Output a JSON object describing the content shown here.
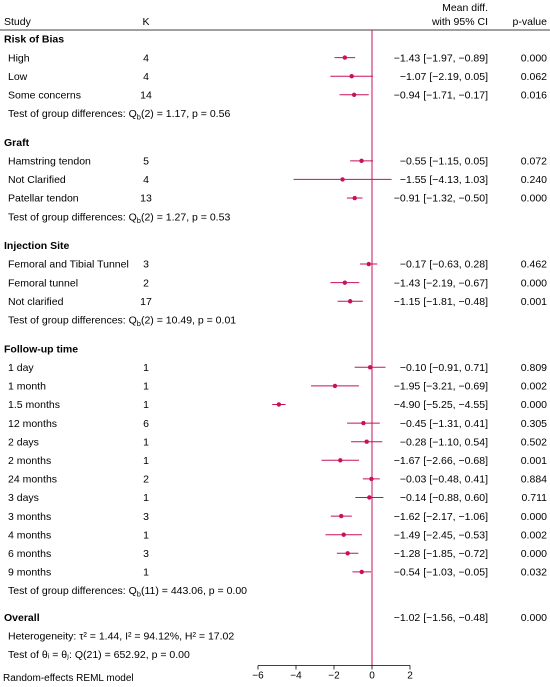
{
  "chart_data": {
    "type": "forest",
    "columns": {
      "study": "Study",
      "k": "K",
      "effect": [
        "Mean diff.",
        "with 95% CI"
      ],
      "p": "p-value"
    },
    "accent_color": "#c8105b",
    "xlim": [
      -6,
      2
    ],
    "xticks": [
      -6,
      -4,
      -2,
      0,
      2
    ],
    "xtick_labels": [
      "−6",
      "−4",
      "−2",
      "0",
      "2"
    ],
    "reference_line": 0,
    "groups": [
      {
        "title": "Risk of Bias",
        "test_prefix": "Test of group differences: Q",
        "test_sub": "b",
        "test_suffix": "(2) = 1.17, p = 0.56",
        "rows": [
          {
            "label": "High",
            "k": "4",
            "est": -1.43,
            "lo": -1.97,
            "hi": -0.89,
            "ci_text": "−1.43 [−1.97, −0.89]",
            "p": "0.000"
          },
          {
            "label": "Low",
            "k": "4",
            "est": -1.07,
            "lo": -2.19,
            "hi": 0.05,
            "ci_text": "−1.07 [−2.19,  0.05]",
            "p": "0.062"
          },
          {
            "label": "Some concerns",
            "k": "14",
            "est": -0.94,
            "lo": -1.71,
            "hi": -0.17,
            "ci_text": "−0.94 [−1.71, −0.17]",
            "p": "0.016"
          }
        ]
      },
      {
        "title": "Graft",
        "test_prefix": "Test of group differences: Q",
        "test_sub": "b",
        "test_suffix": "(2) = 1.27, p = 0.53",
        "rows": [
          {
            "label": "Hamstring tendon",
            "k": "5",
            "est": -0.55,
            "lo": -1.15,
            "hi": 0.05,
            "ci_text": "−0.55 [−1.15,  0.05]",
            "p": "0.072"
          },
          {
            "label": "Not Clarified",
            "k": "4",
            "est": -1.55,
            "lo": -4.13,
            "hi": 1.03,
            "ci_text": "−1.55 [−4.13,  1.03]",
            "p": "0.240"
          },
          {
            "label": "Patellar tendon",
            "k": "13",
            "est": -0.91,
            "lo": -1.32,
            "hi": -0.5,
            "ci_text": "−0.91 [−1.32, −0.50]",
            "p": "0.000"
          }
        ]
      },
      {
        "title": "Injection Site",
        "test_prefix": "Test of group differences: Q",
        "test_sub": "b",
        "test_suffix": "(2) = 10.49, p = 0.01",
        "rows": [
          {
            "label": "Femoral and Tibial Tunnel",
            "k": "3",
            "est": -0.17,
            "lo": -0.63,
            "hi": 0.28,
            "ci_text": "−0.17 [−0.63,  0.28]",
            "p": "0.462"
          },
          {
            "label": "Femoral tunnel",
            "k": "2",
            "est": -1.43,
            "lo": -2.19,
            "hi": -0.67,
            "ci_text": "−1.43 [−2.19, −0.67]",
            "p": "0.000"
          },
          {
            "label": "Not clarified",
            "k": "17",
            "est": -1.15,
            "lo": -1.81,
            "hi": -0.48,
            "ci_text": "−1.15 [−1.81, −0.48]",
            "p": "0.001"
          }
        ]
      },
      {
        "title": "Follow-up time",
        "test_prefix": "Test of group differences: Q",
        "test_sub": "b",
        "test_suffix": "(11) = 443.06, p = 0.00",
        "rows": [
          {
            "label": "1 day",
            "k": "1",
            "est": -0.1,
            "lo": -0.91,
            "hi": 0.71,
            "ci_text": "−0.10 [−0.91,  0.71]",
            "p": "0.809"
          },
          {
            "label": "1 month",
            "k": "1",
            "est": -1.95,
            "lo": -3.21,
            "hi": -0.69,
            "ci_text": "−1.95 [−3.21, −0.69]",
            "p": "0.002"
          },
          {
            "label": "1.5 months",
            "k": "1",
            "est": -4.9,
            "lo": -5.25,
            "hi": -4.55,
            "ci_text": "−4.90 [−5.25, −4.55]",
            "p": "0.000"
          },
          {
            "label": "12 months",
            "k": "6",
            "est": -0.45,
            "lo": -1.31,
            "hi": 0.41,
            "ci_text": "−0.45 [−1.31,  0.41]",
            "p": "0.305"
          },
          {
            "label": "2 days",
            "k": "1",
            "est": -0.28,
            "lo": -1.1,
            "hi": 0.54,
            "ci_text": "−0.28 [−1.10,  0.54]",
            "p": "0.502"
          },
          {
            "label": "2 months",
            "k": "1",
            "est": -1.67,
            "lo": -2.66,
            "hi": -0.68,
            "ci_text": "−1.67 [−2.66, −0.68]",
            "p": "0.001"
          },
          {
            "label": "24 months",
            "k": "2",
            "est": -0.03,
            "lo": -0.48,
            "hi": 0.41,
            "ci_text": "−0.03 [−0.48,  0.41]",
            "p": "0.884"
          },
          {
            "label": "3 days",
            "k": "1",
            "est": -0.14,
            "lo": -0.88,
            "hi": 0.6,
            "ci_text": "−0.14 [−0.88,  0.60]",
            "p": "0.711"
          },
          {
            "label": "3 months",
            "k": "3",
            "est": -1.62,
            "lo": -2.17,
            "hi": -1.06,
            "ci_text": "−1.62 [−2.17, −1.06]",
            "p": "0.000"
          },
          {
            "label": "4 months",
            "k": "1",
            "est": -1.49,
            "lo": -2.45,
            "hi": -0.53,
            "ci_text": "−1.49 [−2.45, −0.53]",
            "p": "0.002"
          },
          {
            "label": "6 months",
            "k": "3",
            "est": -1.28,
            "lo": -1.85,
            "hi": -0.72,
            "ci_text": "−1.28 [−1.85, −0.72]",
            "p": "0.000"
          },
          {
            "label": "9 months",
            "k": "1",
            "est": -0.54,
            "lo": -1.03,
            "hi": -0.05,
            "ci_text": "−0.54 [−1.03, −0.05]",
            "p": "0.032"
          }
        ]
      }
    ],
    "overall": {
      "title": "Overall",
      "ci_text": "−1.02 [−1.56, −0.48]",
      "p": "0.000",
      "heterogeneity": "Heterogeneity: τ² = 1.44, I² = 94.12%, H² = 17.02",
      "test_theta": "Test of θᵢ = θⱼ: Q(21) = 652.92, p = 0.00"
    },
    "footnote": "Random-effects REML model"
  }
}
